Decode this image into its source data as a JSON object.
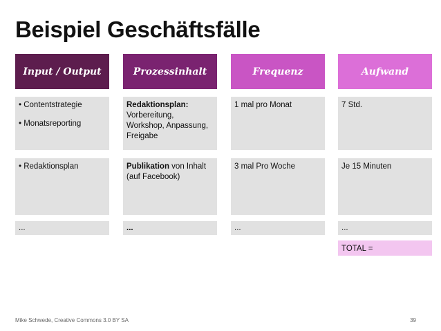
{
  "title": "Beispiel Geschäftsfälle",
  "columns": [
    {
      "header": "Input / Output",
      "color": "#5d1d4e"
    },
    {
      "header": "Prozessinhalt",
      "color": "#7a2370"
    },
    {
      "header": "Frequenz",
      "color": "#c955c4"
    },
    {
      "header": "Aufwand",
      "color": "#dc6fd8"
    }
  ],
  "rows": [
    {
      "c1": [
        "• Contentstrategie",
        "• Monatsreporting"
      ],
      "c2_bold": "Redaktionsplan:",
      "c2_rest": "Vorbereitung, Workshop, Anpassung, Freigabe",
      "c3": "1 mal pro Monat",
      "c4": "7 Std."
    },
    {
      "c1": [
        "• Redaktionsplan"
      ],
      "c2_bold": "Publikation",
      "c2_rest": " von Inhalt (auf Facebook)",
      "c3": "3 mal Pro Woche",
      "c4": "Je 15 Minuten"
    },
    {
      "c1": [
        "..."
      ],
      "c2_bold": "...",
      "c2_rest": "",
      "c3": "...",
      "c4": "..."
    }
  ],
  "total_label": "TOTAL =",
  "footer": "Mike Schwede, Creative Commons 3.0 BY SA",
  "page_number": "39"
}
